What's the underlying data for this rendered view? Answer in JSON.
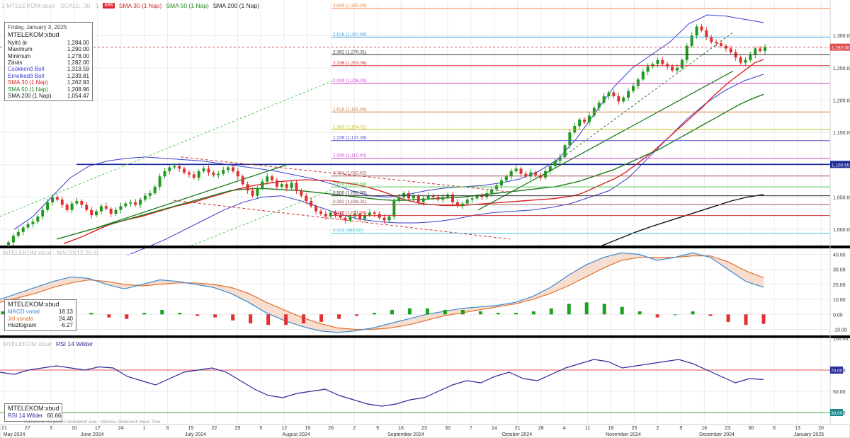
{
  "top_bar": {
    "faded_text": "1 MTELEKOM:xbud · SCALE: 30 · 1",
    "logo_text": "ERS",
    "sma30": "SMA 30 (1 Nap)",
    "sma50": "SMA 50 (1 Nap)",
    "sma200": "SMA 200 (1 Nap)"
  },
  "info_price": {
    "date": "Friday, January 3, 2025",
    "symbol": "MTELEKOM:xbud",
    "rows": [
      {
        "label": "Nyitó ár",
        "value": "1,284.00",
        "color": "#222222"
      },
      {
        "label": "Maximum",
        "value": "1,290.00",
        "color": "#222222"
      },
      {
        "label": "Minimum",
        "value": "1,278.00",
        "color": "#222222"
      },
      {
        "label": "Zárás",
        "value": "1,282.00",
        "color": "#222222"
      },
      {
        "label": "Csökkenő Boll",
        "value": "1,319.59",
        "color": "#3a3ad0"
      },
      {
        "label": "Emelkedő Boll",
        "value": "1,239.81",
        "color": "#3a3ad0"
      },
      {
        "label": "SMA 30 (1 Nap)",
        "value": "1,262.93",
        "color": "#dd2222"
      },
      {
        "label": "SMA 50 (1 Nap)",
        "value": "1,208.96",
        "color": "#1f8a1f"
      },
      {
        "label": "SMA 200 (1 Nap)",
        "value": "1,054.47",
        "color": "#222222"
      }
    ]
  },
  "info_macd": {
    "symbol": "MTELEKOM:xbud",
    "rows": [
      {
        "label": "MACD vonal",
        "value": "18.13",
        "color": "#3a8ad0"
      },
      {
        "label": "Jel vonala",
        "value": "24.40",
        "color": "#e07030"
      },
      {
        "label": "Hisztogram",
        "value": "-6.27",
        "color": "#222222"
      }
    ]
  },
  "info_rsi": {
    "symbol": "MTELEKOM:xbud",
    "rows": [
      {
        "label": "RSI 14 Wilder",
        "value": "60.66",
        "color": "#2a2a9a"
      }
    ]
  },
  "panel_titles": {
    "macd_faded": "MTELEKOM:xbud - MACD(12,26,9)",
    "rsi_faded": "MTELEKOM:xbud",
    "rsi": "RSI 14 Wilder"
  },
  "footnote": "Indikatív ár. 15 perces késleltetett árak · Időzóna: Greenwich Mean Time",
  "chart_data": {
    "type": "candlestick",
    "price_axis": {
      "ticks": [
        "1,000.00",
        "1,050.00",
        "1,100.00",
        "1,150.00",
        "1,200.00",
        "1,250.00",
        "1,300.00"
      ],
      "ylim": [
        975,
        1355
      ]
    },
    "macd_axis": {
      "ticks": [
        "-10.00",
        "0.00",
        "10.00",
        "20.00",
        "30.00",
        "40.00"
      ],
      "ylim": [
        -14,
        44
      ]
    },
    "rsi_axis": {
      "ticks": [
        "30.00",
        "50.00",
        "70.00",
        "100.00"
      ],
      "ylim": [
        20,
        100
      ]
    },
    "date_ticks": [
      "21",
      "27",
      "3",
      "10",
      "17",
      "24",
      "1",
      "8",
      "15",
      "22",
      "29",
      "5",
      "12",
      "19",
      "26",
      "2",
      "9",
      "16",
      "23",
      "30",
      "7",
      "14",
      "21",
      "28",
      "4",
      "11",
      "18",
      "25",
      "2",
      "9",
      "16",
      "23",
      "30",
      "6",
      "13",
      "20"
    ],
    "month_labels": [
      "May 2024",
      "June 2024",
      "July 2024",
      "August 2024",
      "September 2024",
      "October 2024",
      "November 2024",
      "December 2024",
      "January 2025"
    ],
    "current_price_label": "1,282.00",
    "resistance_label": "1,100.55",
    "resistance": 1100.55,
    "rsi_upper": 70,
    "rsi_lower": 30,
    "rsi_current_label": "70.00",
    "rsi_lower_label": "30.00",
    "fib_levels": [
      {
        "label": "3.000 (1,342.00)",
        "value": 1342,
        "color": "#f08040"
      },
      {
        "label": "2.618 (1,297.69)",
        "value": 1297.69,
        "color": "#40a0e0"
      },
      {
        "label": "2.382 (1,270.31)",
        "value": 1270.31,
        "color": "#333333"
      },
      {
        "label": "2.236 (1,253.38)",
        "value": 1253.38,
        "color": "#d03030"
      },
      {
        "label": "2.000 (1,226.00)",
        "value": 1226,
        "color": "#d040d0"
      },
      {
        "label": "1.618 (1,181.69)",
        "value": 1181.69,
        "color": "#d08040"
      },
      {
        "label": "1.382 (1,154.31)",
        "value": 1154.31,
        "color": "#c0c020"
      },
      {
        "label": "1.236 (1,137.38)",
        "value": 1137.38,
        "color": "#5050d0"
      },
      {
        "label": "1.000 (1,110.00)",
        "value": 1110,
        "color": "#d040d0"
      },
      {
        "label": "0.764 (1,082.62)",
        "value": 1082.62,
        "color": "#a05050"
      },
      {
        "label": "0.618 (1,065.69)",
        "value": 1065.69,
        "color": "#50c050"
      },
      {
        "label": "0.500 (1,052.00)",
        "value": 1052,
        "color": "#333333"
      },
      {
        "label": "0.382 (1,038.31)",
        "value": 1038.31,
        "color": "#a05050"
      },
      {
        "label": "0.236 (1,021.38)",
        "value": 1021.38,
        "color": "#d03030"
      },
      {
        "label": "0.000 (994.00)",
        "value": 994,
        "color": "#40c0e0"
      }
    ],
    "closes": [
      980,
      990,
      996,
      1003,
      1008,
      1012,
      1020,
      1030,
      1042,
      1050,
      1046,
      1038,
      1030,
      1040,
      1044,
      1038,
      1030,
      1022,
      1028,
      1036,
      1032,
      1024,
      1030,
      1036,
      1040,
      1042,
      1038,
      1046,
      1052,
      1056,
      1066,
      1082,
      1090,
      1096,
      1098,
      1094,
      1088,
      1085,
      1080,
      1090,
      1094,
      1088,
      1084,
      1086,
      1092,
      1096,
      1090,
      1082,
      1070,
      1060,
      1052,
      1064,
      1074,
      1082,
      1076,
      1066,
      1070,
      1064,
      1072,
      1060,
      1052,
      1044,
      1036,
      1028,
      1024,
      1020,
      1026,
      1022,
      1018,
      1014,
      1020,
      1024,
      1016,
      1022,
      1026,
      1024,
      1018,
      1014,
      1020,
      1044,
      1050,
      1056,
      1048,
      1052,
      1042,
      1048,
      1052,
      1050,
      1046,
      1050,
      1054,
      1042,
      1036,
      1040,
      1046,
      1048,
      1052,
      1050,
      1056,
      1062,
      1068,
      1076,
      1082,
      1090,
      1094,
      1086,
      1082,
      1088,
      1084,
      1080,
      1090,
      1098,
      1106,
      1112,
      1130,
      1150,
      1160,
      1170,
      1166,
      1176,
      1188,
      1196,
      1206,
      1212,
      1206,
      1198,
      1204,
      1214,
      1222,
      1232,
      1244,
      1252,
      1256,
      1262,
      1256,
      1252,
      1246,
      1250,
      1262,
      1284,
      1300,
      1314,
      1308,
      1298,
      1290,
      1288,
      1284,
      1280,
      1274,
      1266,
      1258,
      1262,
      1270,
      1280,
      1276,
      1282
    ],
    "sma30": [
      978,
      983,
      988,
      994,
      1000,
      1006,
      1010,
      1014,
      1017,
      1020,
      1024,
      1028,
      1032,
      1036,
      1039,
      1042,
      1046,
      1050,
      1054,
      1058,
      1062,
      1065,
      1068,
      1070,
      1072,
      1074,
      1075,
      1076,
      1077,
      1076,
      1076,
      1075,
      1073,
      1071,
      1069,
      1066,
      1062,
      1058,
      1053,
      1048,
      1044,
      1041,
      1039,
      1038,
      1037,
      1037,
      1037,
      1038,
      1039,
      1040,
      1041,
      1042,
      1043,
      1044,
      1045,
      1046,
      1047,
      1048,
      1050,
      1052,
      1056,
      1062,
      1068,
      1074,
      1080,
      1088,
      1098,
      1108,
      1118,
      1130,
      1142,
      1154,
      1166,
      1178,
      1190,
      1204,
      1216,
      1228,
      1238,
      1248,
      1258,
      1263
    ],
    "sma50": [
      985,
      990,
      995,
      1000,
      1005,
      1010,
      1015,
      1020,
      1025,
      1030,
      1035,
      1040,
      1045,
      1050,
      1055,
      1060,
      1062,
      1063,
      1063,
      1062,
      1061,
      1060,
      1058,
      1056,
      1054,
      1052,
      1050,
      1048,
      1046,
      1045,
      1045,
      1046,
      1047,
      1048,
      1049,
      1050,
      1052,
      1054,
      1056,
      1058,
      1060,
      1062,
      1064,
      1066,
      1070,
      1074,
      1080,
      1086,
      1092,
      1100,
      1108,
      1116,
      1124,
      1134,
      1144,
      1154,
      1164,
      1174,
      1184,
      1194,
      1202,
      1209
    ],
    "sma200": [
      975,
      985,
      995,
      1004,
      1012,
      1020,
      1028,
      1036,
      1044,
      1050,
      1054
    ],
    "boll_upper": [
      1000,
      1020,
      1050,
      1080,
      1098,
      1106,
      1110,
      1112,
      1110,
      1108,
      1106,
      1102,
      1098,
      1094,
      1090,
      1084,
      1078,
      1070,
      1060,
      1052,
      1050,
      1054,
      1060,
      1064,
      1066,
      1068,
      1072,
      1078,
      1090,
      1108,
      1140,
      1180,
      1220,
      1250,
      1270,
      1290,
      1318,
      1332,
      1330,
      1325,
      1320
    ],
    "boll_lower": [
      960,
      972,
      985,
      1000,
      1015,
      1030,
      1042,
      1050,
      1052,
      1044,
      1034,
      1024,
      1016,
      1012,
      1010,
      1010,
      1012,
      1016,
      1022,
      1026,
      1028,
      1030,
      1034,
      1040,
      1050,
      1060,
      1080,
      1110,
      1140,
      1170,
      1195,
      1215,
      1230,
      1240
    ],
    "macd_line": [
      10,
      14,
      18,
      22,
      25,
      24,
      20,
      17,
      20,
      23,
      22,
      20,
      18,
      14,
      8,
      1,
      -4,
      -8,
      -11,
      -12,
      -11,
      -9,
      -6,
      -3,
      0,
      2,
      4,
      5,
      6,
      8,
      12,
      18,
      26,
      33,
      38,
      41,
      40,
      36,
      38,
      41,
      38,
      30,
      22,
      18
    ],
    "signal_line": [
      8,
      11,
      14,
      18,
      21,
      23,
      22,
      20,
      19,
      20,
      21,
      21,
      20,
      18,
      14,
      8,
      3,
      -2,
      -6,
      -9,
      -10,
      -10,
      -9,
      -7,
      -4,
      -1,
      1,
      3,
      5,
      7,
      10,
      14,
      19,
      25,
      31,
      36,
      38,
      38,
      38,
      39,
      39,
      35,
      29,
      24.4
    ],
    "histogram": [
      2,
      3,
      3,
      4,
      4,
      1,
      -2,
      -3,
      1,
      3,
      1,
      -1,
      -2,
      -4,
      -6,
      -7,
      -7,
      -6,
      -5,
      -3,
      -1,
      1,
      3,
      4,
      4,
      3,
      3,
      2,
      1,
      1,
      2,
      4,
      7,
      8,
      7,
      5,
      2,
      -2,
      0,
      2,
      -1,
      -5,
      -7,
      -6.27
    ],
    "rsi": [
      68,
      66,
      70,
      72,
      74,
      72,
      70,
      73,
      72,
      64,
      60,
      56,
      62,
      68,
      70,
      72,
      68,
      60,
      52,
      46,
      44,
      48,
      50,
      52,
      46,
      42,
      38,
      36,
      38,
      42,
      44,
      50,
      56,
      60,
      58,
      64,
      68,
      62,
      60,
      66,
      72,
      76,
      80,
      78,
      72,
      74,
      76,
      78,
      80,
      76,
      70,
      64,
      58,
      62,
      61
    ]
  }
}
